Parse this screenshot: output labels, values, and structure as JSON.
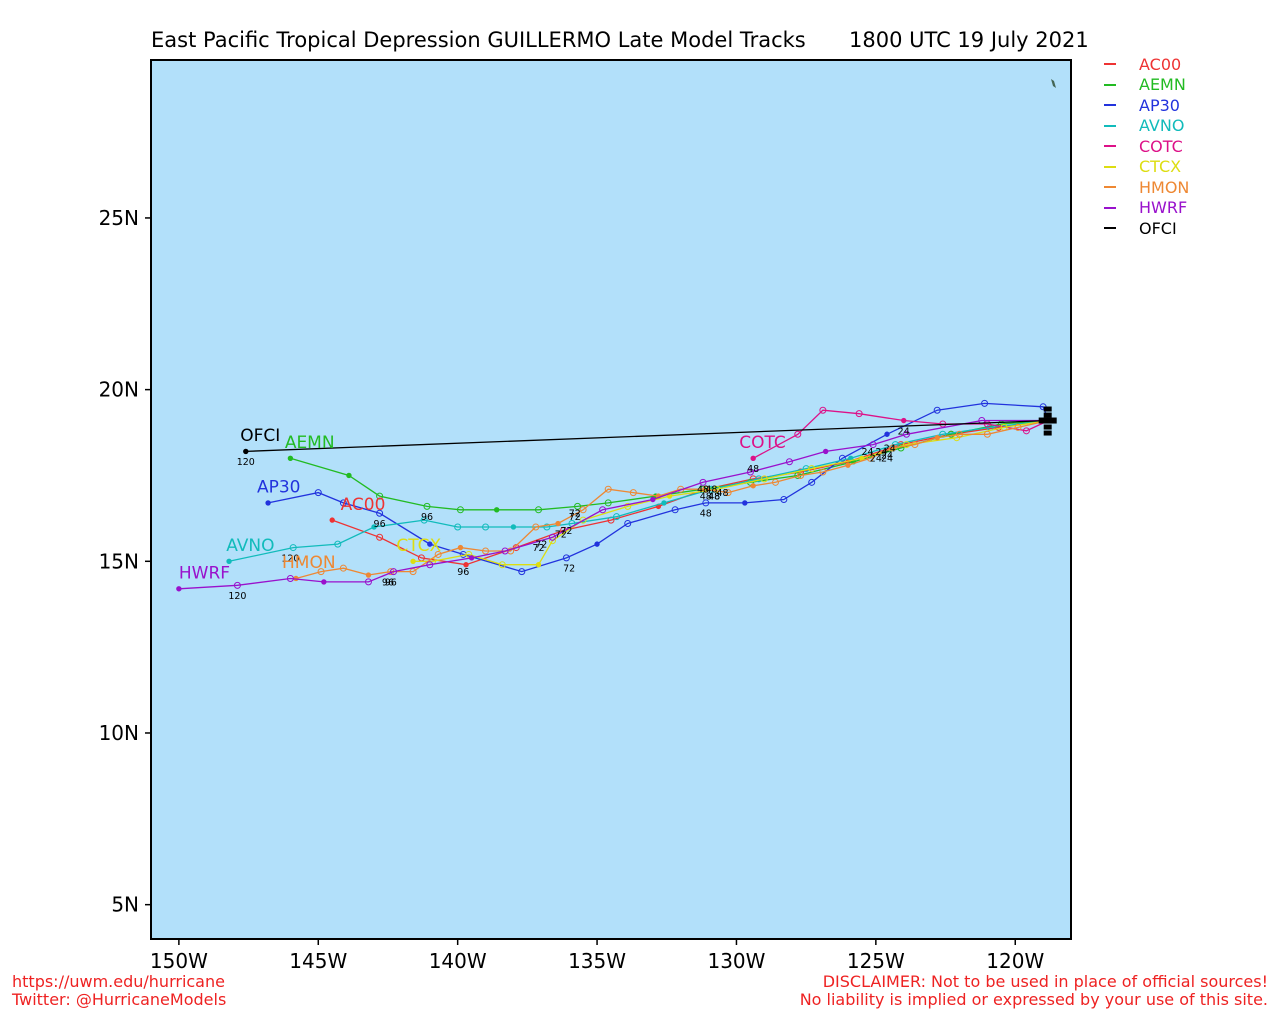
{
  "header": {
    "title": "East Pacific Tropical Depression GUILLERMO Late Model Tracks",
    "datetime": "1800 UTC 19 July 2021"
  },
  "map": {
    "ocean_color": "#b2e0fa",
    "lon_range": [
      -151,
      -118
    ],
    "lat_range": [
      4,
      29.6
    ],
    "x_ticks": [
      {
        "value": -150,
        "label": "150W"
      },
      {
        "value": -145,
        "label": "145W"
      },
      {
        "value": -140,
        "label": "140W"
      },
      {
        "value": -135,
        "label": "135W"
      },
      {
        "value": -130,
        "label": "130W"
      },
      {
        "value": -125,
        "label": "125W"
      },
      {
        "value": -120,
        "label": "120W"
      }
    ],
    "y_ticks": [
      {
        "value": 5,
        "label": "5N"
      },
      {
        "value": 10,
        "label": "10N"
      },
      {
        "value": 15,
        "label": "15N"
      },
      {
        "value": 20,
        "label": "20N"
      },
      {
        "value": 25,
        "label": "25N"
      }
    ]
  },
  "chart_data": {
    "type": "scatter",
    "legend_position": "right",
    "series": [
      {
        "name": "AC00",
        "color": "#ee3333",
        "points": [
          [
            -118.8,
            19.1
          ],
          [
            -120.6,
            18.9
          ],
          [
            -122.3,
            18.7
          ],
          [
            -124.1,
            18.4
          ],
          [
            -126.0,
            17.9
          ],
          [
            -127.7,
            17.6
          ],
          [
            -129.4,
            17.4
          ],
          [
            -131.1,
            17.1
          ],
          [
            -132.8,
            16.6
          ],
          [
            -134.5,
            16.2
          ],
          [
            -136.2,
            15.9
          ],
          [
            -137.9,
            15.4
          ],
          [
            -139.7,
            14.9
          ],
          [
            -141.3,
            15.1
          ],
          [
            -142.8,
            15.7
          ],
          [
            -144.5,
            16.2
          ]
        ],
        "time_labels": [
          {
            "text": "24",
            "lon": -124.8,
            "lat": 18.1
          },
          {
            "text": "48",
            "lon": -130.8,
            "lat": 16.8
          },
          {
            "text": "72",
            "lon": -136.1,
            "lat": 15.8
          },
          {
            "text": "96",
            "lon": -139.8,
            "lat": 14.6
          }
        ],
        "end_label": "AC00",
        "end_label_pos": [
          -144.2,
          16.5
        ]
      },
      {
        "name": "AEMN",
        "color": "#22bb22",
        "points": [
          [
            -118.8,
            19.1
          ],
          [
            -120.5,
            19.0
          ],
          [
            -122.3,
            18.7
          ],
          [
            -124.1,
            18.3
          ],
          [
            -125.8,
            17.9
          ],
          [
            -127.8,
            17.5
          ],
          [
            -129.5,
            17.3
          ],
          [
            -131.2,
            17.1
          ],
          [
            -132.9,
            16.9
          ],
          [
            -134.6,
            16.7
          ],
          [
            -135.7,
            16.6
          ],
          [
            -137.1,
            16.5
          ],
          [
            -138.6,
            16.5
          ],
          [
            -139.9,
            16.5
          ],
          [
            -141.1,
            16.6
          ],
          [
            -142.8,
            16.9
          ],
          [
            -143.9,
            17.5
          ],
          [
            -146.0,
            18.0
          ]
        ],
        "time_labels": [
          {
            "text": "24",
            "lon": -124.6,
            "lat": 18.0
          },
          {
            "text": "48",
            "lon": -130.9,
            "lat": 17.0
          },
          {
            "text": "72",
            "lon": -135.8,
            "lat": 16.3
          },
          {
            "text": "96",
            "lon": -141.1,
            "lat": 16.2
          }
        ],
        "end_label": "AEMN",
        "end_label_pos": [
          -146.2,
          18.3
        ]
      },
      {
        "name": "AP30",
        "color": "#2233dd",
        "points": [
          [
            -118.8,
            19.1
          ],
          [
            -119.0,
            19.5
          ],
          [
            -121.1,
            19.6
          ],
          [
            -122.8,
            19.4
          ],
          [
            -124.6,
            18.7
          ],
          [
            -126.2,
            18.0
          ],
          [
            -127.3,
            17.3
          ],
          [
            -128.3,
            16.8
          ],
          [
            -129.7,
            16.7
          ],
          [
            -131.1,
            16.7
          ],
          [
            -132.2,
            16.5
          ],
          [
            -133.9,
            16.1
          ],
          [
            -135.0,
            15.5
          ],
          [
            -136.1,
            15.1
          ],
          [
            -137.7,
            14.7
          ],
          [
            -139.8,
            15.2
          ],
          [
            -141.0,
            15.5
          ],
          [
            -142.8,
            16.4
          ],
          [
            -144.1,
            16.7
          ],
          [
            -145.0,
            17.0
          ],
          [
            -146.8,
            16.7
          ]
        ],
        "time_labels": [
          {
            "text": "24",
            "lon": -124.0,
            "lat": 18.7
          },
          {
            "text": "48",
            "lon": -131.1,
            "lat": 16.3
          },
          {
            "text": "72",
            "lon": -136.0,
            "lat": 14.7
          },
          {
            "text": "96",
            "lon": -142.8,
            "lat": 16.0
          }
        ],
        "end_label": "AP30",
        "end_label_pos": [
          -147.2,
          17.0
        ]
      },
      {
        "name": "AVNO",
        "color": "#11bbbb",
        "points": [
          [
            -118.8,
            19.1
          ],
          [
            -120.9,
            18.9
          ],
          [
            -122.6,
            18.7
          ],
          [
            -124.3,
            18.4
          ],
          [
            -125.9,
            18.0
          ],
          [
            -127.5,
            17.7
          ],
          [
            -129.2,
            17.4
          ],
          [
            -130.9,
            17.1
          ],
          [
            -132.6,
            16.7
          ],
          [
            -134.3,
            16.3
          ],
          [
            -135.9,
            16.1
          ],
          [
            -136.8,
            16.0
          ],
          [
            -138.0,
            16.0
          ],
          [
            -139.0,
            16.0
          ],
          [
            -140.0,
            16.0
          ],
          [
            -141.2,
            16.2
          ],
          [
            -143.0,
            16.0
          ],
          [
            -144.3,
            15.5
          ],
          [
            -145.9,
            15.4
          ],
          [
            -148.2,
            15.0
          ]
        ],
        "time_labels": [
          {
            "text": "24",
            "lon": -124.5,
            "lat": 18.2
          },
          {
            "text": "48",
            "lon": -131.2,
            "lat": 17.0
          },
          {
            "text": "72",
            "lon": -135.8,
            "lat": 16.2
          },
          {
            "text": "120",
            "lon": -146.0,
            "lat": 15.0
          }
        ],
        "end_label": "AVNO",
        "end_label_pos": [
          -148.3,
          15.3
        ]
      },
      {
        "name": "COTC",
        "color": "#dd1188",
        "points": [
          [
            -118.8,
            19.1
          ],
          [
            -119.6,
            18.8
          ],
          [
            -121.0,
            19.0
          ],
          [
            -122.6,
            19.0
          ],
          [
            -124.0,
            19.1
          ],
          [
            -125.6,
            19.3
          ],
          [
            -126.9,
            19.4
          ],
          [
            -127.8,
            18.7
          ],
          [
            -129.4,
            18.0
          ]
        ],
        "time_labels": [
          {
            "text": "48",
            "lon": -129.4,
            "lat": 17.6
          }
        ],
        "end_label": "COTC",
        "end_label_pos": [
          -129.9,
          18.3
        ]
      },
      {
        "name": "CTCX",
        "color": "#dddd11",
        "points": [
          [
            -118.8,
            19.1
          ],
          [
            -120.4,
            18.9
          ],
          [
            -122.1,
            18.6
          ],
          [
            -123.9,
            18.4
          ],
          [
            -125.5,
            18.0
          ],
          [
            -127.3,
            17.7
          ],
          [
            -129.0,
            17.4
          ],
          [
            -130.7,
            17.1
          ],
          [
            -132.4,
            16.9
          ],
          [
            -133.9,
            16.6
          ],
          [
            -135.5,
            16.2
          ],
          [
            -136.6,
            15.6
          ],
          [
            -137.1,
            14.9
          ],
          [
            -138.4,
            14.9
          ],
          [
            -139.6,
            15.2
          ],
          [
            -140.9,
            15.0
          ],
          [
            -141.6,
            15.0
          ]
        ],
        "time_labels": [
          {
            "text": "24",
            "lon": -124.6,
            "lat": 17.9
          },
          {
            "text": "48",
            "lon": -130.8,
            "lat": 16.8
          },
          {
            "text": "72",
            "lon": -137.1,
            "lat": 15.3
          }
        ],
        "end_label": "CTCX",
        "end_label_pos": [
          -142.2,
          15.3
        ]
      },
      {
        "name": "HMON",
        "color": "#ee8833",
        "points": [
          [
            -118.8,
            19.1
          ],
          [
            -119.9,
            18.9
          ],
          [
            -121.0,
            18.7
          ],
          [
            -122.0,
            18.7
          ],
          [
            -122.8,
            18.6
          ],
          [
            -123.6,
            18.4
          ],
          [
            -124.4,
            18.3
          ],
          [
            -125.2,
            18.0
          ],
          [
            -126.0,
            17.8
          ],
          [
            -126.9,
            17.6
          ],
          [
            -127.7,
            17.5
          ],
          [
            -128.6,
            17.3
          ],
          [
            -129.4,
            17.2
          ],
          [
            -130.3,
            17.0
          ],
          [
            -131.1,
            17.1
          ],
          [
            -132.0,
            17.1
          ],
          [
            -132.8,
            16.9
          ],
          [
            -133.7,
            17.0
          ],
          [
            -134.6,
            17.1
          ],
          [
            -135.5,
            16.5
          ],
          [
            -136.4,
            16.1
          ],
          [
            -137.2,
            16.0
          ],
          [
            -138.1,
            15.3
          ],
          [
            -139.0,
            15.3
          ],
          [
            -139.9,
            15.4
          ],
          [
            -140.7,
            15.2
          ],
          [
            -141.6,
            14.7
          ],
          [
            -142.4,
            14.7
          ],
          [
            -143.2,
            14.6
          ],
          [
            -144.1,
            14.8
          ],
          [
            -144.9,
            14.7
          ],
          [
            -145.8,
            14.5
          ]
        ],
        "time_labels": [
          {
            "text": "24",
            "lon": -125.0,
            "lat": 17.9
          },
          {
            "text": "48",
            "lon": -130.5,
            "lat": 16.9
          },
          {
            "text": "72",
            "lon": -136.3,
            "lat": 15.7
          },
          {
            "text": "96",
            "lon": -142.5,
            "lat": 14.3
          }
        ],
        "end_label": "HMON",
        "end_label_pos": [
          -146.3,
          14.8
        ]
      },
      {
        "name": "HWRF",
        "color": "#9911cc",
        "points": [
          [
            -118.8,
            19.1
          ],
          [
            -121.2,
            19.1
          ],
          [
            -123.9,
            18.7
          ],
          [
            -125.1,
            18.4
          ],
          [
            -126.8,
            18.2
          ],
          [
            -128.1,
            17.9
          ],
          [
            -129.5,
            17.6
          ],
          [
            -131.2,
            17.3
          ],
          [
            -133.0,
            16.8
          ],
          [
            -134.8,
            16.5
          ],
          [
            -136.6,
            15.7
          ],
          [
            -138.3,
            15.3
          ],
          [
            -139.5,
            15.1
          ],
          [
            -141.0,
            14.9
          ],
          [
            -142.3,
            14.7
          ],
          [
            -143.2,
            14.4
          ],
          [
            -144.8,
            14.4
          ],
          [
            -146.0,
            14.5
          ],
          [
            -147.9,
            14.3
          ],
          [
            -150.0,
            14.2
          ]
        ],
        "time_labels": [
          {
            "text": "24",
            "lon": -125.3,
            "lat": 18.1
          },
          {
            "text": "48",
            "lon": -131.1,
            "lat": 16.8
          },
          {
            "text": "72",
            "lon": -137.0,
            "lat": 15.4
          },
          {
            "text": "96",
            "lon": -142.4,
            "lat": 14.3
          },
          {
            "text": "120",
            "lon": -147.9,
            "lat": 13.9
          }
        ],
        "end_label": "HWRF",
        "end_label_pos": [
          -150.0,
          14.5
        ]
      },
      {
        "name": "OFCI",
        "color": "#000000",
        "points": [
          [
            -118.8,
            19.1
          ],
          [
            -147.6,
            18.2
          ]
        ],
        "time_labels": [
          {
            "text": "120",
            "lon": -147.6,
            "lat": 17.8
          }
        ],
        "end_label": "OFCI",
        "end_label_pos": [
          -147.8,
          18.5
        ]
      }
    ]
  },
  "footer": {
    "url": "https://uwm.edu/hurricane",
    "twitter": "Twitter: @HurricaneModels",
    "disclaimer_line1": "DISCLAIMER: Not to be used in place of official sources!",
    "disclaimer_line2": "No liability is implied or expressed by your use of this site."
  }
}
